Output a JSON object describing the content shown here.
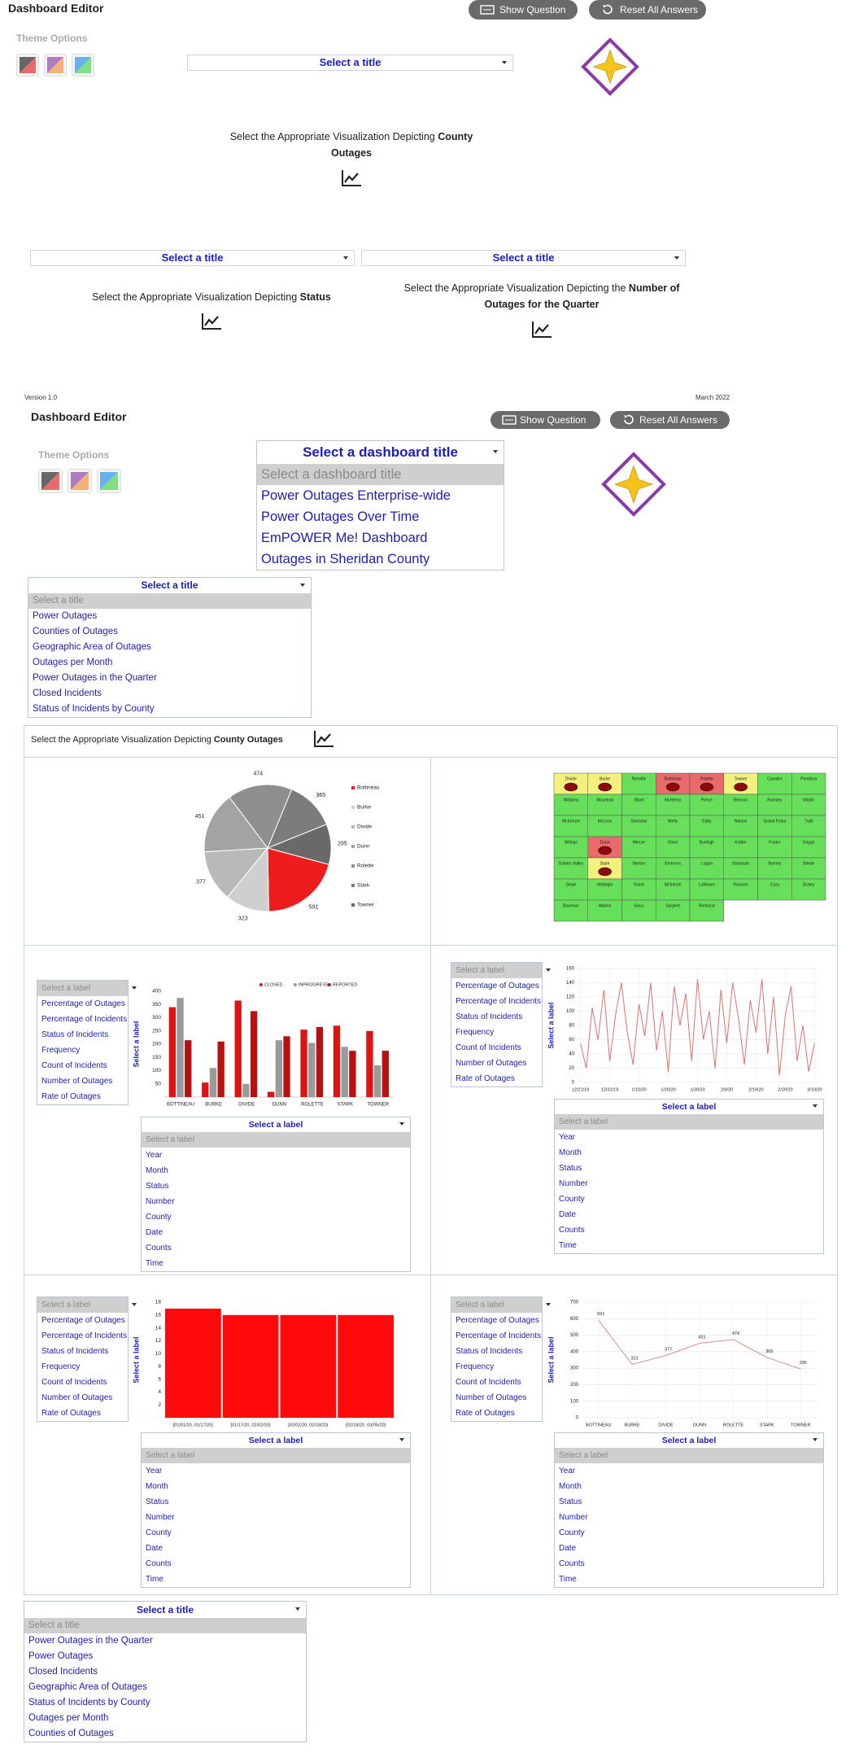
{
  "header": {
    "title": "Dashboard Editor",
    "theme_options": "Theme Options",
    "show_question": "Show Question",
    "reset_all": "Reset All Answers",
    "title_select": "Select a title",
    "county_prompt": {
      "lead": "Select the Appropriate Visualization Depicting",
      "bold": "County Outages"
    },
    "status_select": "Select a title",
    "status_prompt": {
      "lead": "Select the Appropriate Visualization Depicting",
      "bold": "Status"
    },
    "quarter_select": "Select a title",
    "quarter_prompt": {
      "lead": "Select the Appropriate Visualization Depicting the",
      "bold": "Number of Outages for the Quarter"
    }
  },
  "meta": {
    "version": "Version 1.0",
    "date": "March 2022"
  },
  "editor": {
    "title": "Dashboard Editor",
    "theme_options": "Theme Options",
    "show_question": "Show Question",
    "reset_all": "Reset All Answers",
    "dashboard_title_dropdown": {
      "header": "Select a dashboard title",
      "options": [
        "Select a dashboard title",
        "Power Outages Enterprise-wide",
        "Power Outages Over Time",
        "EmPOWER Me! Dashboard",
        "Outages in Sheridan County"
      ]
    },
    "title_dropdown": {
      "header": "Select a title",
      "options": [
        "Select a title",
        "Power Outages",
        "Counties of Outages",
        "Geographic Area of Outages",
        "Outages per Month",
        "Power Outages in the Quarter",
        "Closed Incidents",
        "Status of Incidents by County"
      ]
    },
    "panel_prompt": {
      "lead": "Select the Appropriate Visualization Depicting",
      "bold": [
        "County",
        "Outages"
      ]
    },
    "y_label_list": {
      "options": [
        "Select a label",
        "Percentage of Outages",
        "Percentage of Incidents",
        "Status of Incidents",
        "Frequency",
        "Count of Incidents",
        "Number of Outages",
        "Rate of Outages"
      ]
    },
    "x_label_dropdown": {
      "header": "Select a label",
      "options": [
        "Select a label",
        "Year",
        "Month",
        "Status",
        "Number",
        "County",
        "Date",
        "Counts",
        "Time"
      ]
    },
    "axis_placeholder": "Select a label",
    "bottom_title_dropdown": {
      "header": "Select a title",
      "options": [
        "Select a title",
        "Power Outages in the Quarter",
        "Power Outages",
        "Closed Incidents",
        "Geographic Area of Outages",
        "Status of Incidents by County",
        "Outages per Month",
        "Counties of Outages"
      ]
    }
  },
  "chart_data": [
    {
      "type": "pie",
      "categories": [
        "Bottineau",
        "Burke",
        "Divide",
        "Dunn",
        "Rolette",
        "Stark",
        "Towner"
      ],
      "values": [
        591,
        323,
        377,
        451,
        474,
        365,
        295
      ],
      "colors": [
        "#ee1c1c",
        "#cfcfcf",
        "#b9b9b9",
        "#a3a3a3",
        "#8f8f8f",
        "#7c7c7c",
        "#696969"
      ]
    },
    {
      "type": "map",
      "regions": [
        {
          "name": "Divide",
          "color": "#f4f07c",
          "marker": true
        },
        {
          "name": "Burke",
          "color": "#f4f07c",
          "marker": true
        },
        {
          "name": "Renville",
          "color": "#66e05a"
        },
        {
          "name": "Bottineau",
          "color": "#e86a6a",
          "marker": true
        },
        {
          "name": "Rolette",
          "color": "#e86a6a",
          "marker": true
        },
        {
          "name": "Towner",
          "color": "#f4f07c",
          "marker": true
        },
        {
          "name": "Cavalier",
          "color": "#66e05a"
        },
        {
          "name": "Pembina",
          "color": "#66e05a"
        },
        {
          "name": "Williams",
          "color": "#66e05a"
        },
        {
          "name": "Mountrail",
          "color": "#66e05a"
        },
        {
          "name": "Ward",
          "color": "#66e05a"
        },
        {
          "name": "McHenry",
          "color": "#66e05a"
        },
        {
          "name": "Pierce",
          "color": "#66e05a"
        },
        {
          "name": "Benson",
          "color": "#66e05a"
        },
        {
          "name": "Ramsey",
          "color": "#66e05a"
        },
        {
          "name": "Walsh",
          "color": "#66e05a"
        },
        {
          "name": "McKenzie",
          "color": "#66e05a"
        },
        {
          "name": "McLean",
          "color": "#66e05a"
        },
        {
          "name": "Sheridan",
          "color": "#66e05a"
        },
        {
          "name": "Wells",
          "color": "#66e05a"
        },
        {
          "name": "Eddy",
          "color": "#66e05a"
        },
        {
          "name": "Nelson",
          "color": "#66e05a"
        },
        {
          "name": "Grand Forks",
          "color": "#66e05a"
        },
        {
          "name": "Traill",
          "color": "#66e05a"
        },
        {
          "name": "Billings",
          "color": "#66e05a"
        },
        {
          "name": "Dunn",
          "color": "#e86a6a",
          "marker": true
        },
        {
          "name": "Mercer",
          "color": "#66e05a"
        },
        {
          "name": "Oliver",
          "color": "#66e05a"
        },
        {
          "name": "Burleigh",
          "color": "#66e05a"
        },
        {
          "name": "Kidder",
          "color": "#66e05a"
        },
        {
          "name": "Foster",
          "color": "#66e05a"
        },
        {
          "name": "Griggs",
          "color": "#66e05a"
        },
        {
          "name": "Golden Valley",
          "color": "#66e05a"
        },
        {
          "name": "Stark",
          "color": "#f4f07c",
          "marker": true
        },
        {
          "name": "Morton",
          "color": "#66e05a"
        },
        {
          "name": "Emmons",
          "color": "#66e05a"
        },
        {
          "name": "Logan",
          "color": "#66e05a"
        },
        {
          "name": "Stutsman",
          "color": "#66e05a"
        },
        {
          "name": "Barnes",
          "color": "#66e05a"
        },
        {
          "name": "Steele",
          "color": "#66e05a"
        },
        {
          "name": "Slope",
          "color": "#66e05a"
        },
        {
          "name": "Hettinger",
          "color": "#66e05a"
        },
        {
          "name": "Grant",
          "color": "#66e05a"
        },
        {
          "name": "McIntosh",
          "color": "#66e05a"
        },
        {
          "name": "LaMoure",
          "color": "#66e05a"
        },
        {
          "name": "Ransom",
          "color": "#66e05a"
        },
        {
          "name": "Cass",
          "color": "#66e05a"
        },
        {
          "name": "Dickey",
          "color": "#66e05a"
        },
        {
          "name": "Bowman",
          "color": "#66e05a"
        },
        {
          "name": "Adams",
          "color": "#66e05a"
        },
        {
          "name": "Sioux",
          "color": "#66e05a"
        },
        {
          "name": "Sargent",
          "color": "#66e05a"
        },
        {
          "name": "Richland",
          "color": "#66e05a"
        }
      ]
    },
    {
      "type": "bar",
      "categories": [
        "BOTTINEAU",
        "BURKE",
        "DIVIDE",
        "DUNN",
        "ROLETTE",
        "STARK",
        "TOWNER"
      ],
      "series": [
        {
          "name": "CLOSED",
          "color": "#dd1414",
          "values": [
            340,
            55,
            365,
            20,
            255,
            270,
            250
          ]
        },
        {
          "name": "INPROGRESS",
          "color": "#9a9a9a",
          "values": [
            375,
            110,
            50,
            215,
            205,
            190,
            120
          ]
        },
        {
          "name": "REPORTED",
          "color": "#b71111",
          "values": [
            215,
            210,
            325,
            230,
            265,
            175,
            175
          ]
        }
      ],
      "ylim": [
        0,
        400
      ],
      "yticks": [
        50,
        100,
        150,
        200,
        250,
        300,
        350,
        400
      ],
      "grid": false
    },
    {
      "type": "line",
      "categories": [
        "12/21/19",
        null,
        null,
        null,
        null,
        "12/31/19",
        null,
        null,
        null,
        null,
        "1/10/20",
        null,
        null,
        null,
        null,
        "1/20/20",
        null,
        null,
        null,
        null,
        "1/30/20",
        null,
        null,
        null,
        null,
        "2/9/20",
        null,
        null,
        null,
        null,
        "2/19/20",
        null,
        null,
        null,
        null,
        "2/29/20",
        null,
        null,
        null,
        null,
        "3/10/20"
      ],
      "values": [
        55,
        20,
        105,
        60,
        130,
        30,
        95,
        140,
        70,
        25,
        110,
        65,
        140,
        45,
        100,
        15,
        135,
        80,
        125,
        30,
        145,
        60,
        100,
        20,
        130,
        55,
        140,
        90,
        25,
        115,
        70,
        145,
        40,
        120,
        10,
        95,
        135,
        30,
        80,
        15,
        55
      ],
      "color": "#e07070",
      "ylim": [
        0,
        160
      ],
      "yticks": [
        0,
        20,
        40,
        60,
        80,
        100,
        120,
        140,
        160
      ],
      "grid": true,
      "data_labels": false
    },
    {
      "type": "bar",
      "categories": [
        "[01/01/20, 01/17/20)",
        "[01/17/20, 02/02/20)",
        "[02/02/20, 02/18/20)",
        "[02/18/20, 03/05/20]"
      ],
      "values": [
        17,
        16,
        16,
        16
      ],
      "color": "#ff0a0a",
      "ylim": [
        0,
        18
      ],
      "yticks": [
        2,
        4,
        6,
        8,
        10,
        12,
        14,
        16,
        18
      ],
      "grid": false,
      "touching": true
    },
    {
      "type": "line",
      "categories": [
        "BOTTINEAU",
        "BURKE",
        "DIVIDE",
        "DUNN",
        "ROLETTE",
        "STARK",
        "TOWNER"
      ],
      "values": [
        591,
        323,
        377,
        451,
        474,
        365,
        295
      ],
      "color": "#e08a8a",
      "ylim": [
        0,
        700
      ],
      "yticks": [
        0,
        100,
        200,
        300,
        400,
        500,
        600,
        700
      ],
      "grid": true,
      "data_labels": true
    }
  ]
}
